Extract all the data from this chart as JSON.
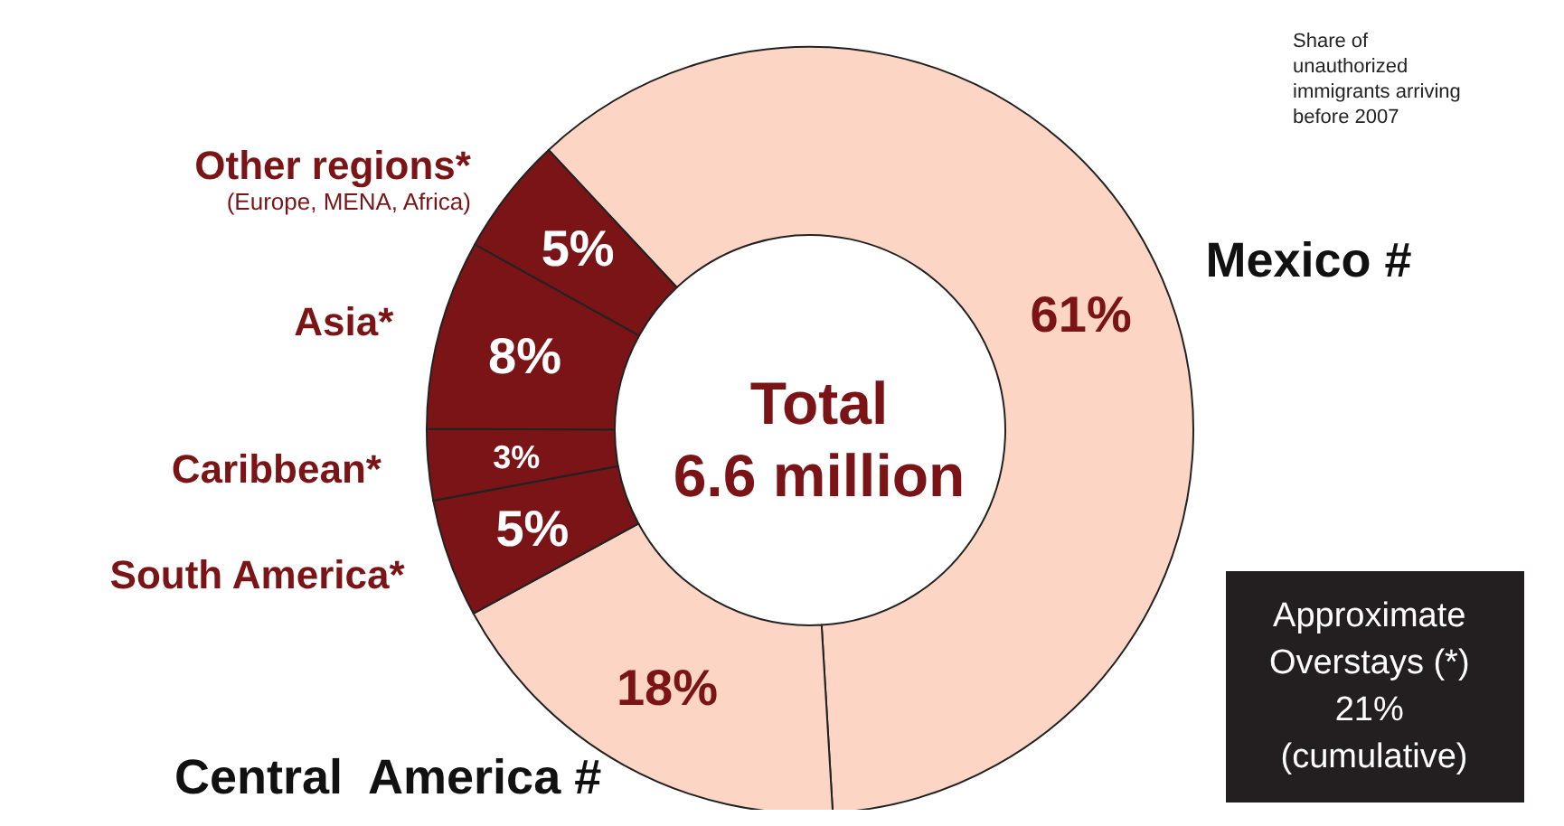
{
  "chart_data": {
    "type": "donut",
    "title": "Total 6.6 million",
    "categories": [
      "Mexico #",
      "Central  America #",
      "South America*",
      "Caribbean*",
      "Asia*",
      "Other regions*"
    ],
    "values": [
      61,
      18,
      5,
      3,
      8,
      5
    ],
    "value_labels": [
      "61%",
      "18%",
      "5%",
      "3%",
      "8%",
      "5%"
    ],
    "colors": [
      "#fcd5c4",
      "#fcd5c4",
      "#7b1416",
      "#7b1416",
      "#7b1416",
      "#7b1416"
    ],
    "annotations": [
      "Share of unauthorized immigrants arriving before 2007",
      "(Europe, MENA, Africa)",
      "Approximate Overstays (*) 21% (cumulative)"
    ]
  }
}
